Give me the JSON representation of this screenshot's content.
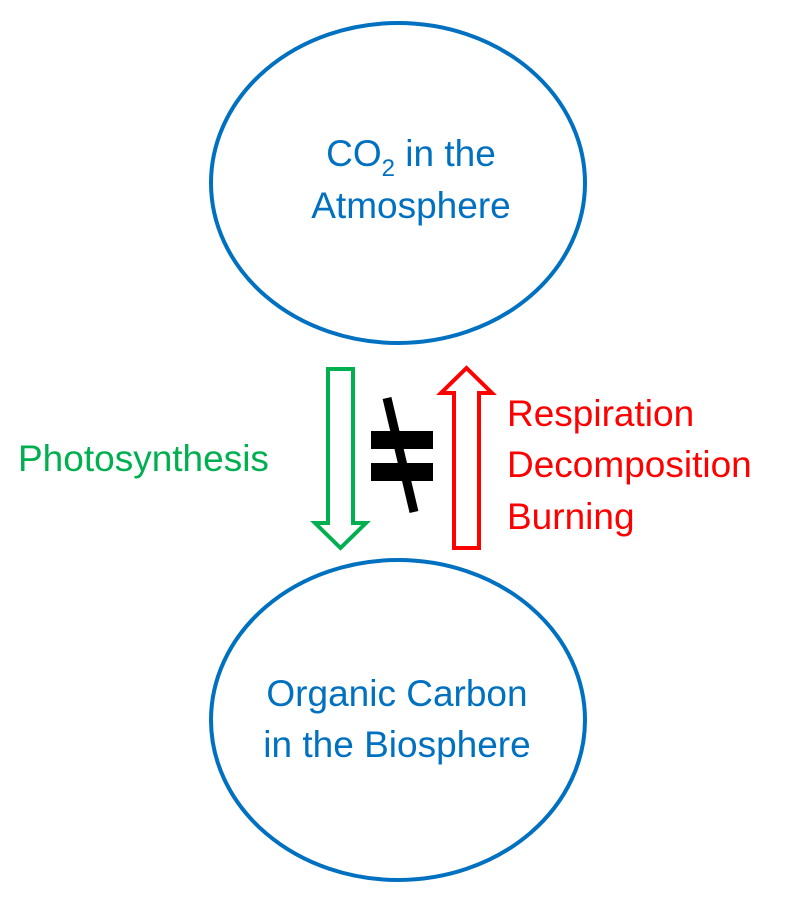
{
  "colors": {
    "node_outline": "#0070c0",
    "node_text": "#0070c0",
    "photosynthesis": "#00b050",
    "release": "#ff0000",
    "not_equal": "#000000",
    "background": "#ffffff"
  },
  "top_node": {
    "line1_prefix": "CO",
    "line1_subscript": "2",
    "line1_suffix": " in the",
    "line2": "Atmosphere"
  },
  "bottom_node": {
    "line1": "Organic Carbon",
    "line2": "in the Biosphere"
  },
  "left_label": {
    "text": "Photosynthesis"
  },
  "right_label": {
    "lines": [
      "Respiration",
      "Decomposition",
      "Burning"
    ]
  },
  "center_symbol": {
    "icon": "not-equal-icon"
  }
}
